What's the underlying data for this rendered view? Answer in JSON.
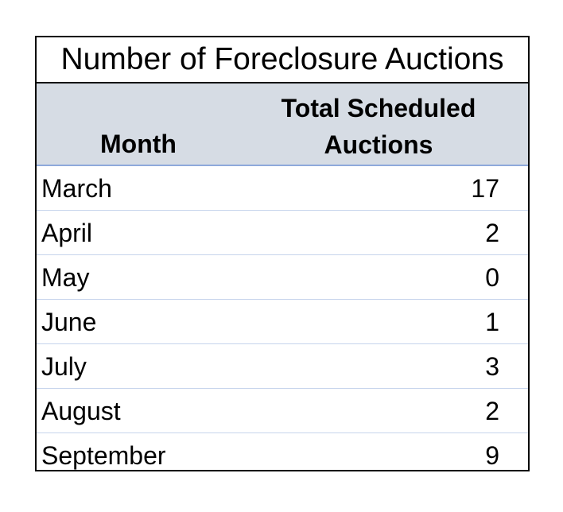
{
  "chart_data": {
    "type": "table",
    "title": "Number of Foreclosure Auctions",
    "columns": [
      "Month",
      "Total Scheduled Auctions"
    ],
    "column_header_lines": [
      "Total Scheduled",
      "Auctions"
    ],
    "categories": [
      "March",
      "April",
      "May",
      "June",
      "July",
      "August",
      "September"
    ],
    "values": [
      17,
      2,
      0,
      1,
      3,
      2,
      9
    ],
    "rows": [
      {
        "month": "March",
        "value": "17"
      },
      {
        "month": "April",
        "value": "2"
      },
      {
        "month": "May",
        "value": "0"
      },
      {
        "month": "June",
        "value": "1"
      },
      {
        "month": "July",
        "value": "3"
      },
      {
        "month": "August",
        "value": "2"
      },
      {
        "month": "September",
        "value": "9"
      }
    ],
    "header_color": "#d6dce4",
    "row_divider_color": "#c6d4ec"
  }
}
